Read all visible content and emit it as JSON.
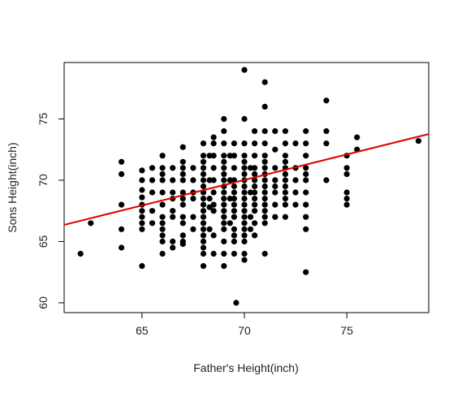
{
  "chart_data": {
    "type": "scatter",
    "xlabel": "Father's Height(inch)",
    "ylabel": "Sons Height(inch)",
    "xlim": [
      61.2,
      79.0
    ],
    "ylim": [
      59.2,
      79.6
    ],
    "xticks": [
      65,
      70,
      75
    ],
    "yticks": [
      60,
      65,
      70,
      75
    ],
    "point_color": "#000000",
    "line_color": "#dd0000",
    "regression_line": {
      "intercept": 40.9,
      "slope": 0.416
    },
    "points": [
      [
        62,
        64
      ],
      [
        62.5,
        66.5
      ],
      [
        64,
        71.5
      ],
      [
        64,
        70.5
      ],
      [
        64,
        68
      ],
      [
        64,
        66
      ],
      [
        64,
        64.5
      ],
      [
        65,
        70.8
      ],
      [
        65,
        70
      ],
      [
        65,
        69.2
      ],
      [
        65,
        68.6
      ],
      [
        65,
        68
      ],
      [
        65,
        67.5
      ],
      [
        65,
        67
      ],
      [
        65,
        66.5
      ],
      [
        65,
        66
      ],
      [
        65,
        63
      ],
      [
        65.5,
        71
      ],
      [
        65.5,
        70
      ],
      [
        65.5,
        69
      ],
      [
        65.5,
        67.5
      ],
      [
        65.5,
        66.5
      ],
      [
        66,
        72
      ],
      [
        66,
        71
      ],
      [
        66,
        70.5
      ],
      [
        66,
        70
      ],
      [
        66,
        69
      ],
      [
        66,
        68
      ],
      [
        66,
        67
      ],
      [
        66,
        66.5
      ],
      [
        66,
        66
      ],
      [
        66,
        65.5
      ],
      [
        66,
        65
      ],
      [
        66,
        64
      ],
      [
        66.5,
        71
      ],
      [
        66.5,
        70
      ],
      [
        66.5,
        69
      ],
      [
        66.5,
        68.5
      ],
      [
        66.5,
        67.5
      ],
      [
        66.5,
        67
      ],
      [
        66.5,
        65
      ],
      [
        66.5,
        64.5
      ],
      [
        67,
        72.7
      ],
      [
        67,
        71.5
      ],
      [
        67,
        71
      ],
      [
        67,
        70.5
      ],
      [
        67,
        70
      ],
      [
        67,
        69
      ],
      [
        67,
        68.5
      ],
      [
        67,
        68
      ],
      [
        67,
        67
      ],
      [
        67,
        66.5
      ],
      [
        67,
        65.5
      ],
      [
        67,
        65
      ],
      [
        67,
        64.8
      ],
      [
        67.5,
        71
      ],
      [
        67.5,
        70
      ],
      [
        67.5,
        69
      ],
      [
        67.5,
        68.5
      ],
      [
        67.5,
        67
      ],
      [
        67.5,
        66
      ],
      [
        68,
        73
      ],
      [
        68,
        72
      ],
      [
        68,
        71.5
      ],
      [
        68,
        71
      ],
      [
        68,
        70.5
      ],
      [
        68,
        70
      ],
      [
        68,
        69.5
      ],
      [
        68,
        69
      ],
      [
        68,
        68.5
      ],
      [
        68,
        68
      ],
      [
        68,
        67.5
      ],
      [
        68,
        67
      ],
      [
        68,
        66.5
      ],
      [
        68,
        66
      ],
      [
        68,
        65.5
      ],
      [
        68,
        65
      ],
      [
        68,
        64.5
      ],
      [
        68,
        64
      ],
      [
        68,
        63
      ],
      [
        68.3,
        72
      ],
      [
        68.3,
        70
      ],
      [
        68.3,
        68.5
      ],
      [
        68.3,
        67.8
      ],
      [
        68.3,
        66
      ],
      [
        68.5,
        73.5
      ],
      [
        68.5,
        73
      ],
      [
        68.5,
        72
      ],
      [
        68.5,
        71
      ],
      [
        68.5,
        70
      ],
      [
        68.5,
        69
      ],
      [
        68.5,
        68
      ],
      [
        68.5,
        67.5
      ],
      [
        68.5,
        65.5
      ],
      [
        68.5,
        64
      ],
      [
        69,
        75
      ],
      [
        69,
        74
      ],
      [
        69,
        73
      ],
      [
        69,
        72
      ],
      [
        69,
        71.5
      ],
      [
        69,
        71
      ],
      [
        69,
        70.5
      ],
      [
        69,
        70
      ],
      [
        69,
        69.5
      ],
      [
        69,
        69
      ],
      [
        69,
        68.5
      ],
      [
        69,
        68
      ],
      [
        69,
        67.5
      ],
      [
        69,
        67
      ],
      [
        69,
        66.5
      ],
      [
        69,
        66
      ],
      [
        69,
        65
      ],
      [
        69,
        64
      ],
      [
        69,
        63
      ],
      [
        69.3,
        72
      ],
      [
        69.3,
        70
      ],
      [
        69.3,
        68.5
      ],
      [
        69.3,
        66.5
      ],
      [
        69.5,
        73
      ],
      [
        69.5,
        72
      ],
      [
        69.5,
        71
      ],
      [
        69.5,
        70
      ],
      [
        69.5,
        69.5
      ],
      [
        69.5,
        69
      ],
      [
        69.5,
        68.5
      ],
      [
        69.5,
        68
      ],
      [
        69.5,
        67.5
      ],
      [
        69.5,
        67
      ],
      [
        69.5,
        66
      ],
      [
        69.5,
        65.5
      ],
      [
        69.5,
        65
      ],
      [
        69.5,
        64
      ],
      [
        69.6,
        60
      ],
      [
        70,
        79
      ],
      [
        70,
        75
      ],
      [
        70,
        73
      ],
      [
        70,
        72
      ],
      [
        70,
        71.5
      ],
      [
        70,
        71
      ],
      [
        70,
        70.5
      ],
      [
        70,
        70
      ],
      [
        70,
        69.5
      ],
      [
        70,
        69
      ],
      [
        70,
        68.5
      ],
      [
        70,
        68
      ],
      [
        70,
        67.5
      ],
      [
        70,
        67
      ],
      [
        70,
        66.5
      ],
      [
        70,
        66
      ],
      [
        70,
        65.5
      ],
      [
        70,
        65
      ],
      [
        70,
        64
      ],
      [
        70,
        63.5
      ],
      [
        70.3,
        71
      ],
      [
        70.3,
        69
      ],
      [
        70.3,
        67
      ],
      [
        70.3,
        66
      ],
      [
        70.5,
        74
      ],
      [
        70.5,
        73
      ],
      [
        70.5,
        72
      ],
      [
        70.5,
        71
      ],
      [
        70.5,
        70.5
      ],
      [
        70.5,
        70
      ],
      [
        70.5,
        69.5
      ],
      [
        70.5,
        69
      ],
      [
        70.5,
        68.5
      ],
      [
        70.5,
        68
      ],
      [
        70.5,
        67.5
      ],
      [
        70.5,
        66.5
      ],
      [
        70.5,
        65.5
      ],
      [
        71,
        78
      ],
      [
        71,
        76
      ],
      [
        71,
        74
      ],
      [
        71,
        73
      ],
      [
        71,
        72
      ],
      [
        71,
        71.5
      ],
      [
        71,
        71
      ],
      [
        71,
        70.5
      ],
      [
        71,
        70
      ],
      [
        71,
        69.5
      ],
      [
        71,
        69
      ],
      [
        71,
        68.5
      ],
      [
        71,
        68
      ],
      [
        71,
        67.5
      ],
      [
        71,
        67
      ],
      [
        71,
        66.5
      ],
      [
        71,
        64
      ],
      [
        71.5,
        74
      ],
      [
        71.5,
        72.5
      ],
      [
        71.5,
        71
      ],
      [
        71.5,
        70
      ],
      [
        71.5,
        69.5
      ],
      [
        71.5,
        69
      ],
      [
        71.5,
        68
      ],
      [
        71.5,
        67
      ],
      [
        72,
        74
      ],
      [
        72,
        73
      ],
      [
        72,
        72
      ],
      [
        72,
        71.5
      ],
      [
        72,
        71
      ],
      [
        72,
        70.5
      ],
      [
        72,
        70
      ],
      [
        72,
        69.5
      ],
      [
        72,
        69
      ],
      [
        72,
        68.5
      ],
      [
        72,
        68
      ],
      [
        72,
        67
      ],
      [
        72.5,
        73
      ],
      [
        72.5,
        71
      ],
      [
        72.5,
        70
      ],
      [
        72.5,
        69
      ],
      [
        72.5,
        68
      ],
      [
        73,
        74
      ],
      [
        73,
        73
      ],
      [
        73,
        72
      ],
      [
        73,
        71
      ],
      [
        73,
        70.5
      ],
      [
        73,
        70
      ],
      [
        73,
        69
      ],
      [
        73,
        68
      ],
      [
        73,
        67
      ],
      [
        73,
        66
      ],
      [
        73,
        62.5
      ],
      [
        74,
        76.5
      ],
      [
        74,
        74
      ],
      [
        74,
        73
      ],
      [
        74,
        70
      ],
      [
        75,
        72
      ],
      [
        75,
        71
      ],
      [
        75,
        70.5
      ],
      [
        75,
        69
      ],
      [
        75,
        68.5
      ],
      [
        75,
        68
      ],
      [
        75.5,
        73.5
      ],
      [
        75.5,
        72.5
      ],
      [
        78.5,
        73.2
      ]
    ]
  }
}
